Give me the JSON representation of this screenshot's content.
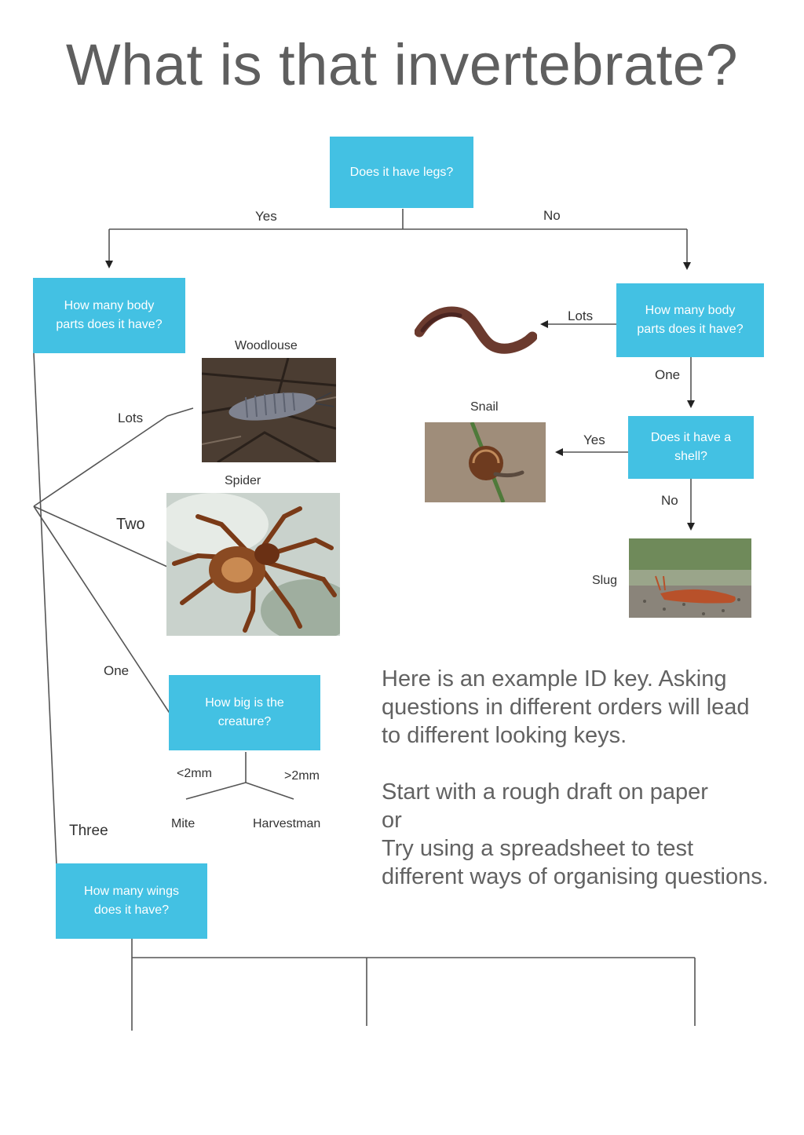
{
  "title": "What is that invertebrate?",
  "questions": {
    "legs": "Does it have legs?",
    "body_parts_left": "How many body parts does it have?",
    "body_parts_right": "How many body parts does it have?",
    "shell": "Does it have a shell?",
    "size": "How big is the creature?",
    "wings": "How many wings does it have?"
  },
  "branches": {
    "yes_top": "Yes",
    "no_top": "No",
    "lots_left": "Lots",
    "two": "Two",
    "one_left": "One",
    "three": "Three",
    "lots_right": "Lots",
    "one_right": "One",
    "yes_shell": "Yes",
    "no_shell": "No",
    "lt2mm": "<2mm",
    "gt2mm": ">2mm"
  },
  "animals": {
    "woodlouse": "Woodlouse",
    "spider": "Spider",
    "snail": "Snail",
    "slug": "Slug",
    "mite": "Mite",
    "harvestman": "Harvestman"
  },
  "note": {
    "line1": "Here is an example ID key. Asking",
    "line2": "questions in different orders will lead",
    "line3": "to different looking keys.",
    "line4": "Start with a rough draft on paper",
    "line5": "or",
    "line6": "Try using a spreadsheet to test",
    "line7": "different ways of organising questions."
  },
  "colors": {
    "box": "#43c1e3",
    "box_text": "#ffffff",
    "line": "#555555",
    "title": "#5f5f5f"
  }
}
